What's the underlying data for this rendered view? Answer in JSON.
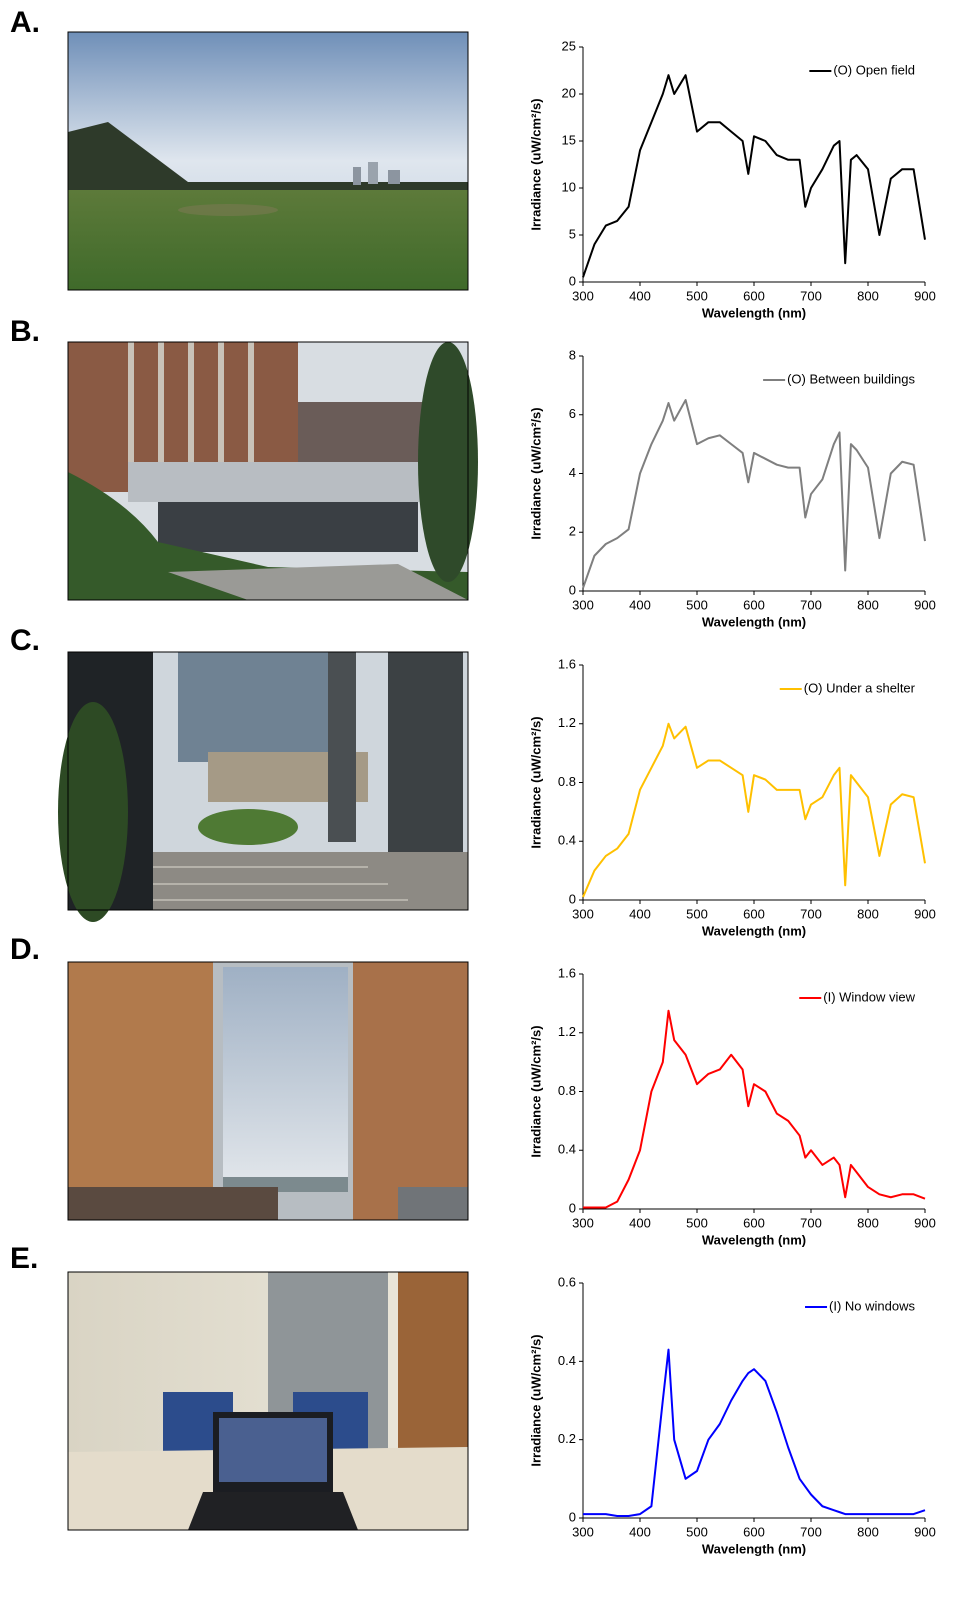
{
  "chart_data": [
    {
      "type": "line",
      "panel": "A.",
      "x_label": "Wavelength (nm)",
      "y_label": "Irradiance (uW/cm²/s)",
      "legend": "upper right",
      "x": [
        300,
        320,
        340,
        360,
        380,
        400,
        420,
        440,
        450,
        460,
        480,
        500,
        520,
        540,
        560,
        580,
        590,
        600,
        620,
        640,
        660,
        680,
        690,
        700,
        720,
        740,
        750,
        760,
        770,
        780,
        800,
        820,
        840,
        860,
        880,
        900
      ],
      "xlim": [
        300,
        900
      ],
      "xticks": [
        300,
        400,
        500,
        600,
        700,
        800,
        900
      ],
      "ylim": [
        0,
        25
      ],
      "yticks": [
        0,
        5,
        10,
        15,
        20,
        25
      ],
      "series": [
        {
          "name": "(O) Open field",
          "color": "#000000",
          "values": [
            0.5,
            4,
            6,
            6.5,
            8,
            14,
            17,
            20,
            22,
            20,
            22,
            16,
            17,
            17,
            16,
            15,
            11.5,
            15.5,
            15,
            13.5,
            13,
            13,
            8,
            10,
            12,
            14.5,
            15,
            2,
            13,
            13.5,
            12,
            5,
            11,
            12,
            12,
            4.5
          ]
        }
      ]
    },
    {
      "type": "line",
      "panel": "B.",
      "x_label": "Wavelength (nm)",
      "y_label": "Irradiance (uW/cm²/s)",
      "legend": "upper right",
      "x": [
        300,
        320,
        340,
        360,
        380,
        400,
        420,
        440,
        450,
        460,
        480,
        500,
        520,
        540,
        560,
        580,
        590,
        600,
        620,
        640,
        660,
        680,
        690,
        700,
        720,
        740,
        750,
        760,
        770,
        780,
        800,
        820,
        840,
        860,
        880,
        900
      ],
      "xlim": [
        300,
        900
      ],
      "xticks": [
        300,
        400,
        500,
        600,
        700,
        800,
        900
      ],
      "ylim": [
        0,
        8
      ],
      "yticks": [
        0,
        2,
        4,
        6,
        8
      ],
      "series": [
        {
          "name": "(O) Between buildings",
          "color": "#7f7f7f",
          "values": [
            0.1,
            1.2,
            1.6,
            1.8,
            2.1,
            4,
            5,
            5.8,
            6.4,
            5.8,
            6.5,
            5,
            5.2,
            5.3,
            5,
            4.7,
            3.7,
            4.7,
            4.5,
            4.3,
            4.2,
            4.2,
            2.5,
            3.3,
            3.8,
            5,
            5.4,
            0.7,
            5,
            4.8,
            4.2,
            1.8,
            4,
            4.4,
            4.3,
            1.7
          ]
        }
      ]
    },
    {
      "type": "line",
      "panel": "C.",
      "x_label": "Wavelength (nm)",
      "y_label": "Irradiance (uW/cm²/s)",
      "legend": "upper right",
      "x": [
        300,
        320,
        340,
        360,
        380,
        400,
        420,
        440,
        450,
        460,
        480,
        500,
        520,
        540,
        560,
        580,
        590,
        600,
        620,
        640,
        660,
        680,
        690,
        700,
        720,
        740,
        750,
        760,
        770,
        780,
        800,
        820,
        840,
        860,
        880,
        900
      ],
      "xlim": [
        300,
        900
      ],
      "xticks": [
        300,
        400,
        500,
        600,
        700,
        800,
        900
      ],
      "ylim": [
        0,
        1.6
      ],
      "yticks": [
        0,
        0.4,
        0.8,
        1.2,
        1.6
      ],
      "series": [
        {
          "name": "(O) Under a shelter",
          "color": "#ffc000",
          "values": [
            0.02,
            0.2,
            0.3,
            0.35,
            0.45,
            0.75,
            0.9,
            1.05,
            1.2,
            1.1,
            1.18,
            0.9,
            0.95,
            0.95,
            0.9,
            0.85,
            0.6,
            0.85,
            0.82,
            0.75,
            0.75,
            0.75,
            0.55,
            0.65,
            0.7,
            0.85,
            0.9,
            0.1,
            0.85,
            0.8,
            0.7,
            0.3,
            0.65,
            0.72,
            0.7,
            0.25
          ]
        }
      ]
    },
    {
      "type": "line",
      "panel": "D.",
      "x_label": "Wavelength (nm)",
      "y_label": "Irradiance (uW/cm²/s)",
      "legend": "upper right",
      "x": [
        300,
        320,
        340,
        360,
        380,
        400,
        420,
        440,
        450,
        460,
        480,
        500,
        520,
        540,
        560,
        580,
        590,
        600,
        620,
        640,
        660,
        680,
        690,
        700,
        720,
        740,
        750,
        760,
        770,
        780,
        800,
        820,
        840,
        860,
        880,
        900
      ],
      "xlim": [
        300,
        900
      ],
      "xticks": [
        300,
        400,
        500,
        600,
        700,
        800,
        900
      ],
      "ylim": [
        0,
        1.6
      ],
      "yticks": [
        0,
        0.4,
        0.8,
        1.2,
        1.6
      ],
      "series": [
        {
          "name": "(I) Window view",
          "color": "#ff0000",
          "values": [
            0.01,
            0.01,
            0.01,
            0.05,
            0.2,
            0.4,
            0.8,
            1.0,
            1.35,
            1.15,
            1.05,
            0.85,
            0.92,
            0.95,
            1.05,
            0.95,
            0.7,
            0.85,
            0.8,
            0.65,
            0.6,
            0.5,
            0.35,
            0.4,
            0.3,
            0.35,
            0.3,
            0.08,
            0.3,
            0.25,
            0.15,
            0.1,
            0.08,
            0.1,
            0.1,
            0.07
          ]
        }
      ]
    },
    {
      "type": "line",
      "panel": "E.",
      "x_label": "Wavelength (nm)",
      "y_label": "Irradiance (uW/cm²/s)",
      "legend": "upper right",
      "x": [
        300,
        320,
        340,
        360,
        380,
        400,
        420,
        440,
        450,
        460,
        480,
        500,
        520,
        540,
        560,
        580,
        590,
        600,
        620,
        640,
        660,
        680,
        690,
        700,
        720,
        740,
        750,
        760,
        770,
        780,
        800,
        820,
        840,
        860,
        880,
        900
      ],
      "xlim": [
        300,
        900
      ],
      "xticks": [
        300,
        400,
        500,
        600,
        700,
        800,
        900
      ],
      "ylim": [
        0,
        0.6
      ],
      "yticks": [
        0,
        0.2,
        0.4,
        0.6
      ],
      "series": [
        {
          "name": "(I) No windows",
          "color": "#0000ff",
          "values": [
            0.01,
            0.01,
            0.01,
            0.005,
            0.005,
            0.01,
            0.03,
            0.3,
            0.43,
            0.2,
            0.1,
            0.12,
            0.2,
            0.24,
            0.3,
            0.35,
            0.37,
            0.38,
            0.35,
            0.27,
            0.18,
            0.1,
            0.08,
            0.06,
            0.03,
            0.02,
            0.015,
            0.01,
            0.01,
            0.01,
            0.01,
            0.01,
            0.01,
            0.01,
            0.01,
            0.02
          ]
        }
      ]
    }
  ]
}
